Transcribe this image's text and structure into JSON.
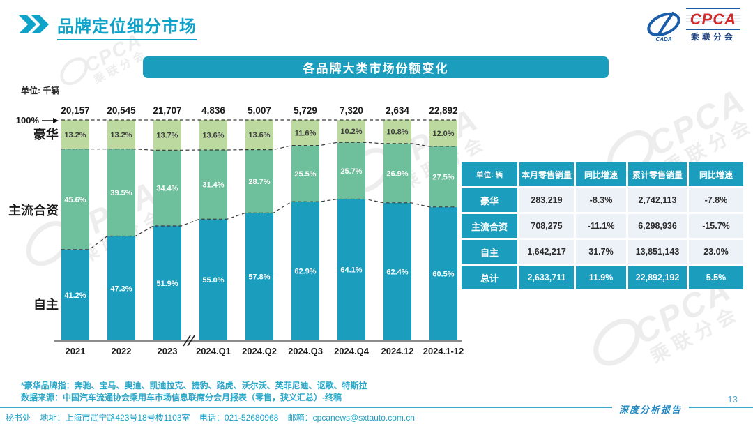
{
  "header": {
    "title": "品牌定位细分市场"
  },
  "logo": {
    "acronym": "CPCA",
    "swoosh_text": "CADA",
    "subtitle": "乘联分会"
  },
  "chart": {
    "banner_title": "各品牌大类市场份额变化",
    "unit_label": "单位: 千辆",
    "hundred_label": "100%"
  },
  "chart_data": {
    "type": "bar",
    "stacked": true,
    "title": "各品牌大类市场份额变化",
    "unit": "千辆",
    "ylim": [
      0,
      100
    ],
    "grid": false,
    "axis_break_after": "2023",
    "categories": [
      "2021",
      "2022",
      "2023",
      "2024.Q1",
      "2024.Q2",
      "2024.Q3",
      "2024.Q4",
      "2024.12",
      "2024.1-12"
    ],
    "totals": [
      20157,
      20545,
      21707,
      4836,
      5007,
      5729,
      7320,
      2634,
      22892
    ],
    "totals_display": [
      "20,157",
      "20,545",
      "21,707",
      "4,836",
      "5,007",
      "5,729",
      "7,320",
      "2,634",
      "22,892"
    ],
    "series": [
      {
        "name": "自主",
        "color": "#1b9dbe",
        "label_color": "#ffffff",
        "values": [
          41.2,
          47.3,
          51.9,
          55.0,
          57.8,
          62.9,
          64.1,
          62.4,
          60.5
        ],
        "labels": [
          "41.2%",
          "47.3%",
          "51.9%",
          "55.0%",
          "57.8%",
          "62.9%",
          "64.1%",
          "62.4%",
          "60.5%"
        ]
      },
      {
        "name": "主流合资",
        "color": "#6ec09c",
        "label_color": "#ffffff",
        "values": [
          45.6,
          39.5,
          34.4,
          31.4,
          28.7,
          25.5,
          25.7,
          26.9,
          27.5
        ],
        "labels": [
          "45.6%",
          "39.5%",
          "34.4%",
          "31.4%",
          "28.7%",
          "25.5%",
          "25.7%",
          "26.9%",
          "27.5%"
        ]
      },
      {
        "name": "豪华",
        "color": "#bcd9a0",
        "label_color": "#3d3d3d",
        "values": [
          13.2,
          13.2,
          13.7,
          13.6,
          13.6,
          11.6,
          10.2,
          10.8,
          12.0
        ],
        "labels": [
          "13.2%",
          "13.2%",
          "13.7%",
          "13.6%",
          "13.6%",
          "11.6%",
          "10.2%",
          "10.8%",
          "12.0%"
        ]
      }
    ],
    "row_axis_labels": [
      "豪华",
      "主流合资",
      "自主"
    ],
    "hundred_label": "100%"
  },
  "table": {
    "unit_header": "单位: 辆",
    "columns": [
      "本月零售销量",
      "同比增速",
      "累计零售销量",
      "同比增速"
    ],
    "rows": [
      {
        "label": "豪华",
        "cells": [
          "283,219",
          "-8.3%",
          "2,742,113",
          "-7.8%"
        ],
        "is_total": false
      },
      {
        "label": "主流合资",
        "cells": [
          "708,275",
          "-11.1%",
          "6,298,936",
          "-15.7%"
        ],
        "is_total": false
      },
      {
        "label": "自主",
        "cells": [
          "1,642,217",
          "31.7%",
          "13,851,143",
          "23.0%"
        ],
        "is_total": false
      },
      {
        "label": "总计",
        "cells": [
          "2,633,711",
          "11.9%",
          "22,892,192",
          "5.5%"
        ],
        "is_total": true
      }
    ]
  },
  "footnotes": {
    "line1": "*豪华品牌指：奔驰、宝马、奥迪、凯迪拉克、捷豹、路虎、沃尔沃、英菲尼迪、讴歌、特斯拉",
    "line2": "数据来源：中国汽车流通协会乘用车市场信息联席分会月报表（零售，狭义汇总）-终稿"
  },
  "footer": {
    "secretariat": "秘书处",
    "address": "地址：上海市武宁路423号18号楼1103室",
    "phone": "电话：021-52680968",
    "email": "邮箱：cpcanews@sxtauto.com.cn",
    "page": "13",
    "report_label": "深度分析报告"
  },
  "watermark": {
    "line1": "CPCA",
    "line2": "乘联分会"
  },
  "colors": {
    "teal": "#1b9dbe",
    "green_mid": "#6ec09c",
    "green_light": "#bcd9a0",
    "title_teal": "#10a3ca",
    "table_cell_bg": "#edf2f8",
    "footnote_teal": "#2aa7c9",
    "dashed_line": "#3a3a3a",
    "axis_gray": "#8c8c8c"
  }
}
